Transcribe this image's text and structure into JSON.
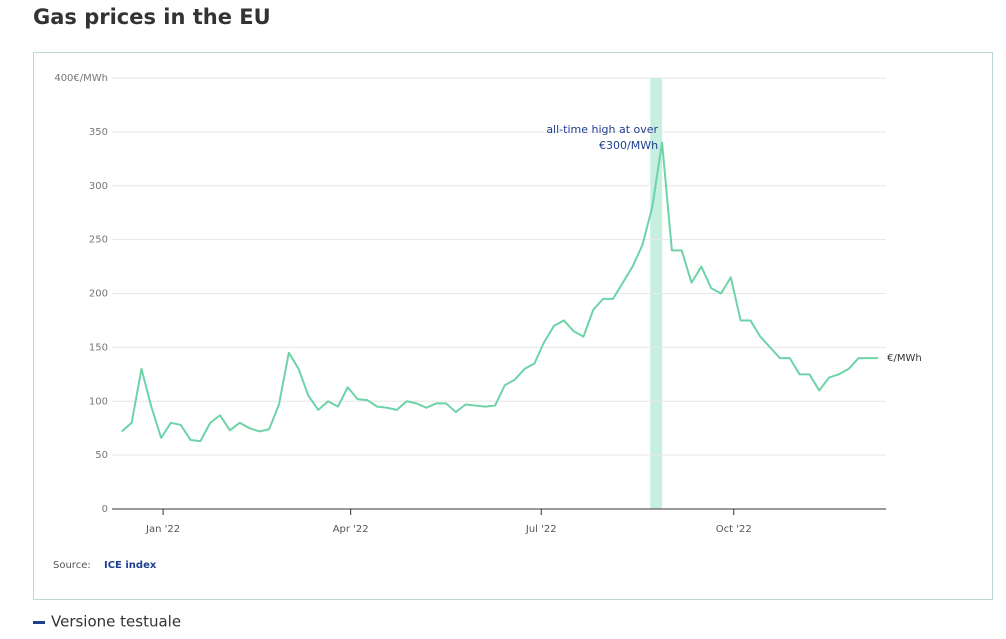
{
  "title": "Gas prices in the EU",
  "chart_data": {
    "type": "line",
    "series": [
      {
        "name": "€/MWh",
        "color": "#6dd3a8",
        "values": [
          72,
          80,
          130,
          95,
          66,
          80,
          78,
          64,
          63,
          80,
          87,
          73,
          80,
          75,
          72,
          74,
          97,
          145,
          130,
          105,
          92,
          100,
          95,
          113,
          102,
          101,
          95,
          94,
          92,
          100,
          98,
          94,
          98,
          98,
          90,
          97,
          96,
          95,
          96,
          115,
          120,
          130,
          135,
          155,
          170,
          175,
          165,
          160,
          185,
          195,
          195,
          210,
          225,
          245,
          280,
          340,
          240,
          240,
          210,
          225,
          205,
          200,
          215,
          175,
          175,
          160,
          150,
          140,
          140,
          125,
          125,
          110,
          122,
          125,
          130,
          140,
          140,
          140
        ]
      }
    ],
    "xlim": [
      -1,
      77.8
    ],
    "xticks": [
      {
        "value": 4.2,
        "label": "Jan '22"
      },
      {
        "value": 23.3,
        "label": "Apr '22"
      },
      {
        "value": 42.7,
        "label": "Jul '22"
      },
      {
        "value": 62.3,
        "label": "Oct '22"
      }
    ],
    "ylim": [
      0,
      400
    ],
    "yticks": [
      0,
      50,
      100,
      150,
      200,
      250,
      300,
      350,
      {
        "value": 400,
        "label": "400€/MWh"
      }
    ],
    "grid": true,
    "highlight": {
      "range": [
        53.8,
        55
      ],
      "color": "#c6efdf",
      "annotation": [
        "all-time high at over",
        "€300/MWh"
      ]
    },
    "source": {
      "label": "Source:",
      "name": "ICE index"
    }
  },
  "footer": "Versione testuale"
}
